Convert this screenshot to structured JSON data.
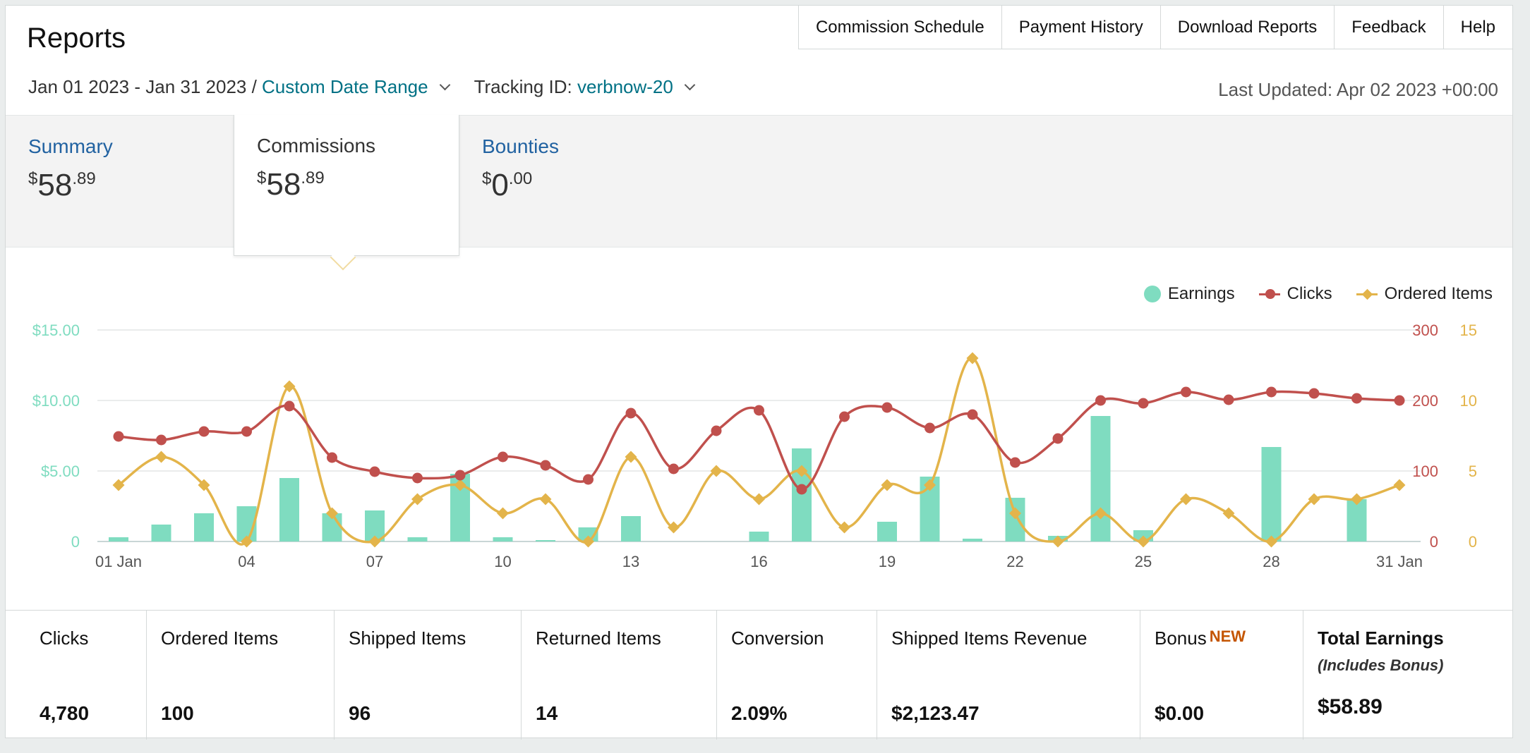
{
  "page": {
    "title": "Reports",
    "last_updated": "Last Updated: Apr 02 2023 +00:00"
  },
  "topnav": [
    "Commission Schedule",
    "Payment History",
    "Download Reports",
    "Feedback",
    "Help"
  ],
  "filters": {
    "date_range": "Jan 01 2023 - Jan 31 2023",
    "separator": " / ",
    "date_preset": "Custom Date Range",
    "tracking_label": "Tracking ID: ",
    "tracking_id": "verbnow-20"
  },
  "tabs": [
    {
      "label": "Summary",
      "currency": "$",
      "whole": "58",
      "cents": ".89",
      "active": false
    },
    {
      "label": "Commissions",
      "currency": "$",
      "whole": "58",
      "cents": ".89",
      "active": true
    },
    {
      "label": "Bounties",
      "currency": "$",
      "whole": "0",
      "cents": ".00",
      "active": false
    }
  ],
  "legend": {
    "earnings": "Earnings",
    "clicks": "Clicks",
    "ordered": "Ordered Items"
  },
  "colors": {
    "earnings": "#7fdcc0",
    "clicks": "#c0504d",
    "ordered": "#e3b44a",
    "link": "#007185",
    "new": "#c45500"
  },
  "chart_data": {
    "type": "bar",
    "x": [
      "01 Jan",
      "02",
      "03",
      "04",
      "05",
      "06",
      "07",
      "08",
      "09",
      "10",
      "11",
      "12",
      "13",
      "14",
      "15",
      "16",
      "17",
      "18",
      "19",
      "20",
      "21",
      "22",
      "23",
      "24",
      "25",
      "26",
      "27",
      "28",
      "29",
      "30",
      "31 Jan"
    ],
    "x_tick_labels": [
      "01 Jan",
      "04",
      "07",
      "10",
      "13",
      "16",
      "19",
      "22",
      "25",
      "28",
      "31 Jan"
    ],
    "axes": {
      "earnings": {
        "ticks": [
          "0",
          "$5.00",
          "$10.00",
          "$15.00"
        ],
        "range": [
          0,
          15
        ]
      },
      "clicks": {
        "ticks": [
          "0",
          "100",
          "200",
          "300"
        ],
        "range": [
          0,
          300
        ]
      },
      "ordered": {
        "ticks": [
          "0",
          "5",
          "10",
          "15"
        ],
        "range": [
          0,
          15
        ]
      }
    },
    "series": [
      {
        "name": "Earnings",
        "type": "bar",
        "axis": "earnings",
        "values": [
          0.3,
          1.2,
          2.0,
          2.5,
          4.5,
          2.0,
          2.2,
          0.3,
          4.8,
          0.3,
          0.1,
          1.0,
          1.8,
          0,
          0,
          0.7,
          6.6,
          0,
          1.4,
          4.6,
          0.2,
          3.1,
          0.4,
          8.9,
          0.8,
          0,
          0,
          6.7,
          0,
          3.0,
          0
        ]
      },
      {
        "name": "Clicks",
        "type": "line",
        "axis": "clicks",
        "values": [
          149,
          144,
          156,
          156,
          192,
          119,
          99,
          90,
          94,
          120,
          108,
          88,
          182,
          103,
          157,
          186,
          74,
          177,
          190,
          161,
          180,
          112,
          146,
          200,
          196,
          212,
          201,
          212,
          210,
          203,
          200
        ]
      },
      {
        "name": "Ordered Items",
        "type": "line",
        "axis": "ordered",
        "values": [
          4,
          6,
          4,
          0,
          11,
          2,
          0,
          3,
          4,
          2,
          3,
          0,
          6,
          1,
          5,
          3,
          5,
          1,
          4,
          4,
          13,
          2,
          0,
          2,
          0,
          3,
          2,
          0,
          3,
          3,
          4
        ]
      }
    ]
  },
  "stats": [
    {
      "label": "Clicks",
      "value": "4,780"
    },
    {
      "label": "Ordered Items",
      "value": "100"
    },
    {
      "label": "Shipped Items",
      "value": "96"
    },
    {
      "label": "Returned Items",
      "value": "14"
    },
    {
      "label": "Conversion",
      "value": "2.09%"
    },
    {
      "label": "Shipped Items Revenue",
      "value": "$2,123.47"
    },
    {
      "label": "Bonus",
      "tag": "NEW",
      "value": "$0.00"
    },
    {
      "label": "Total Earnings",
      "sub": "(Includes Bonus)",
      "value": "$58.89"
    }
  ]
}
